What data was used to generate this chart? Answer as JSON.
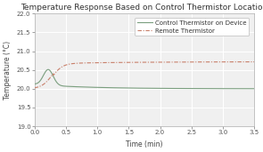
{
  "title": "Temperature Response Based on Control Thermistor Location",
  "xlabel": "Time (min)",
  "ylabel": "Temperature (°C)",
  "xlim": [
    0,
    3.5
  ],
  "ylim": [
    19.0,
    22.0
  ],
  "xticks": [
    0.0,
    0.5,
    1.0,
    1.5,
    2.0,
    2.5,
    3.0,
    3.5
  ],
  "yticks": [
    19.0,
    19.5,
    20.0,
    20.5,
    21.0,
    21.5,
    22.0
  ],
  "legend": [
    "Control Thermistor on Device",
    "Remote Thermistor"
  ],
  "control_color": "#7a9e7e",
  "remote_color": "#c87f6a",
  "background_color": "#ffffff",
  "plot_bg_color": "#f0f0f0",
  "grid_color": "#ffffff",
  "title_fontsize": 6.5,
  "label_fontsize": 5.5,
  "tick_fontsize": 5.0,
  "legend_fontsize": 5.0
}
